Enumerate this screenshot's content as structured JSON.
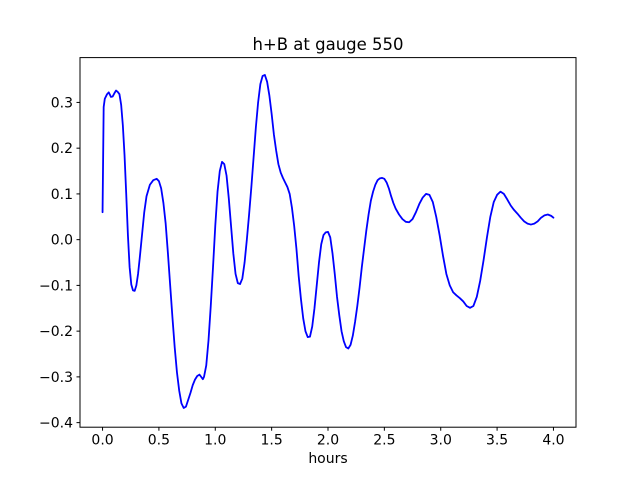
{
  "chart_data": {
    "type": "line",
    "title": "h+B at gauge 550",
    "xlabel": "hours",
    "ylabel": "",
    "grid": false,
    "legend": null,
    "line_color": "#0000ff",
    "line_width": 1.8,
    "axis_color": "#000000",
    "background_color": "#ffffff",
    "xlim": [
      -0.2,
      4.2
    ],
    "ylim": [
      -0.41,
      0.398
    ],
    "x_ticks": [
      0.0,
      0.5,
      1.0,
      1.5,
      2.0,
      2.5,
      3.0,
      3.5,
      4.0
    ],
    "x_tick_labels": [
      "0.0",
      "0.5",
      "1.0",
      "1.5",
      "2.0",
      "2.5",
      "3.0",
      "3.5",
      "4.0"
    ],
    "y_ticks": [
      -0.4,
      -0.3,
      -0.2,
      -0.1,
      0.0,
      0.1,
      0.2,
      0.3
    ],
    "y_tick_labels": [
      "−0.4",
      "−0.3",
      "−0.2",
      "−0.1",
      "0.0",
      "0.1",
      "0.2",
      "0.3"
    ],
    "series": [
      {
        "name": "h+B",
        "x": [
          0.0,
          0.01,
          0.02,
          0.04,
          0.055,
          0.075,
          0.09,
          0.105,
          0.12,
          0.135,
          0.15,
          0.165,
          0.18,
          0.195,
          0.21,
          0.225,
          0.24,
          0.255,
          0.27,
          0.285,
          0.3,
          0.315,
          0.33,
          0.35,
          0.37,
          0.39,
          0.42,
          0.45,
          0.48,
          0.5,
          0.52,
          0.54,
          0.56,
          0.58,
          0.6,
          0.62,
          0.64,
          0.66,
          0.68,
          0.7,
          0.72,
          0.74,
          0.76,
          0.78,
          0.8,
          0.82,
          0.84,
          0.86,
          0.875,
          0.89,
          0.9,
          0.92,
          0.94,
          0.96,
          0.98,
          1.0,
          1.02,
          1.04,
          1.06,
          1.08,
          1.1,
          1.12,
          1.14,
          1.16,
          1.18,
          1.2,
          1.22,
          1.24,
          1.26,
          1.28,
          1.3,
          1.32,
          1.34,
          1.36,
          1.38,
          1.4,
          1.42,
          1.44,
          1.46,
          1.48,
          1.5,
          1.52,
          1.54,
          1.56,
          1.58,
          1.6,
          1.62,
          1.64,
          1.66,
          1.68,
          1.7,
          1.72,
          1.74,
          1.76,
          1.78,
          1.8,
          1.82,
          1.84,
          1.86,
          1.88,
          1.9,
          1.92,
          1.94,
          1.96,
          1.98,
          2.0,
          2.02,
          2.04,
          2.06,
          2.08,
          2.1,
          2.12,
          2.14,
          2.16,
          2.18,
          2.2,
          2.22,
          2.24,
          2.26,
          2.28,
          2.3,
          2.32,
          2.34,
          2.36,
          2.38,
          2.4,
          2.42,
          2.44,
          2.46,
          2.48,
          2.5,
          2.52,
          2.54,
          2.56,
          2.58,
          2.6,
          2.63,
          2.66,
          2.69,
          2.72,
          2.75,
          2.78,
          2.81,
          2.84,
          2.87,
          2.9,
          2.93,
          2.96,
          2.99,
          3.02,
          3.05,
          3.08,
          3.11,
          3.14,
          3.17,
          3.2,
          3.23,
          3.26,
          3.29,
          3.32,
          3.35,
          3.38,
          3.41,
          3.44,
          3.47,
          3.5,
          3.53,
          3.56,
          3.59,
          3.62,
          3.65,
          3.68,
          3.71,
          3.74,
          3.77,
          3.8,
          3.83,
          3.86,
          3.89,
          3.92,
          3.95,
          3.98,
          4.0
        ],
        "y": [
          0.06,
          0.29,
          0.308,
          0.318,
          0.322,
          0.312,
          0.313,
          0.32,
          0.326,
          0.323,
          0.318,
          0.295,
          0.25,
          0.185,
          0.1,
          0.01,
          -0.06,
          -0.098,
          -0.111,
          -0.112,
          -0.1,
          -0.075,
          -0.04,
          0.01,
          0.06,
          0.095,
          0.12,
          0.13,
          0.133,
          0.128,
          0.112,
          0.08,
          0.035,
          -0.03,
          -0.1,
          -0.17,
          -0.235,
          -0.29,
          -0.33,
          -0.358,
          -0.368,
          -0.365,
          -0.35,
          -0.335,
          -0.318,
          -0.306,
          -0.298,
          -0.295,
          -0.3,
          -0.305,
          -0.3,
          -0.275,
          -0.22,
          -0.145,
          -0.06,
          0.03,
          0.105,
          0.15,
          0.17,
          0.165,
          0.14,
          0.09,
          0.03,
          -0.03,
          -0.075,
          -0.095,
          -0.097,
          -0.085,
          -0.05,
          0.0,
          0.055,
          0.115,
          0.18,
          0.245,
          0.3,
          0.34,
          0.358,
          0.36,
          0.345,
          0.315,
          0.275,
          0.23,
          0.195,
          0.165,
          0.147,
          0.135,
          0.125,
          0.115,
          0.1,
          0.07,
          0.03,
          -0.02,
          -0.08,
          -0.13,
          -0.172,
          -0.2,
          -0.213,
          -0.212,
          -0.19,
          -0.15,
          -0.1,
          -0.05,
          -0.01,
          0.01,
          0.016,
          0.017,
          0.005,
          -0.03,
          -0.075,
          -0.125,
          -0.165,
          -0.2,
          -0.222,
          -0.235,
          -0.238,
          -0.23,
          -0.21,
          -0.18,
          -0.145,
          -0.105,
          -0.06,
          -0.02,
          0.02,
          0.055,
          0.085,
          0.105,
          0.12,
          0.13,
          0.134,
          0.135,
          0.133,
          0.125,
          0.112,
          0.095,
          0.08,
          0.068,
          0.055,
          0.045,
          0.039,
          0.038,
          0.045,
          0.06,
          0.078,
          0.092,
          0.1,
          0.098,
          0.082,
          0.05,
          0.01,
          -0.035,
          -0.075,
          -0.1,
          -0.115,
          -0.122,
          -0.128,
          -0.135,
          -0.145,
          -0.149,
          -0.145,
          -0.125,
          -0.09,
          -0.045,
          0.005,
          0.05,
          0.082,
          0.098,
          0.105,
          0.1,
          0.088,
          0.075,
          0.065,
          0.057,
          0.048,
          0.04,
          0.035,
          0.033,
          0.035,
          0.04,
          0.048,
          0.053,
          0.055,
          0.052,
          0.048
        ]
      }
    ]
  }
}
